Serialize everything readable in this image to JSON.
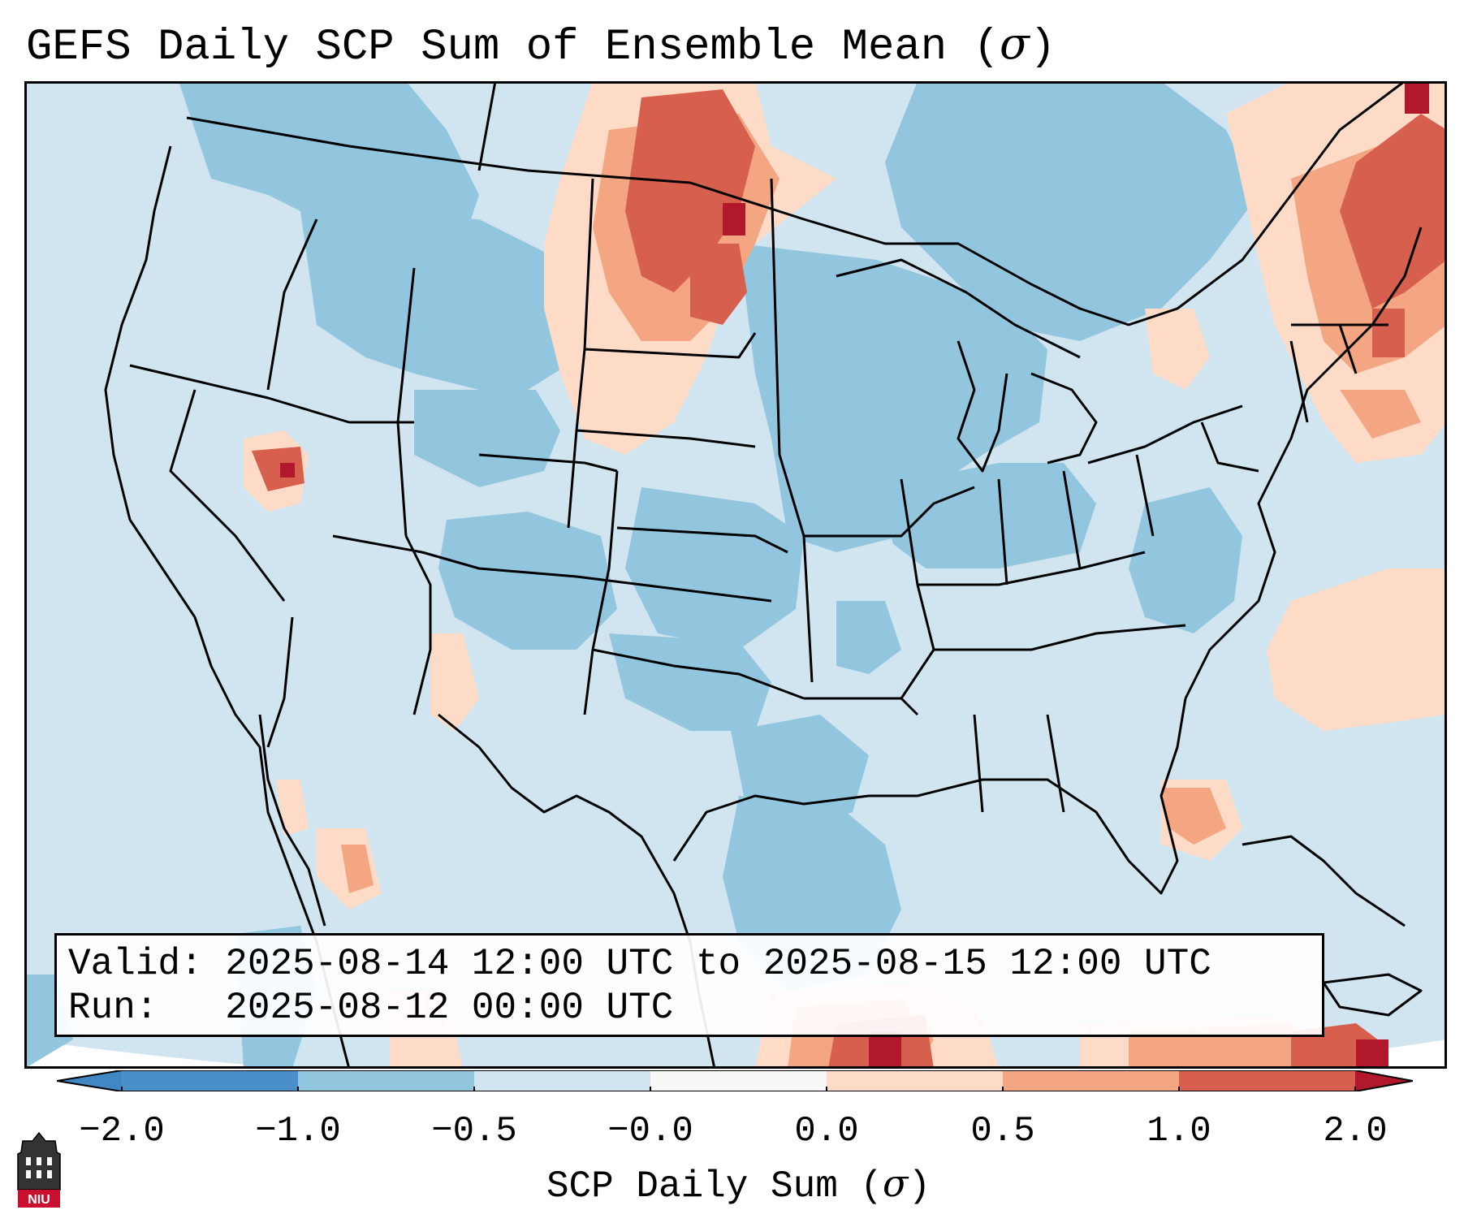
{
  "title": {
    "text": "GEFS Daily SCP Sum of Ensemble Mean (",
    "sigma": "σ",
    "close": ")"
  },
  "info": {
    "valid_label": "Valid:",
    "valid_value": "2025-08-14 12:00 UTC to 2025-08-15 12:00 UTC",
    "run_label": "Run:",
    "run_value": "2025-08-12 00:00 UTC"
  },
  "colorbar": {
    "ticks": [
      "−2.0",
      "−1.0",
      "−0.5",
      "−0.0",
      "0.0",
      "0.5",
      "1.0",
      "2.0"
    ],
    "label_text": "SCP Daily Sum (",
    "label_sigma": "σ",
    "label_close": ")",
    "colors": {
      "extend_low": "#3f88c4",
      "b1": "#4a90c8",
      "b2": "#92c5de",
      "b3": "#d1e5f0",
      "b4": "#f7f7f7",
      "b5": "#fddbc7",
      "b6": "#f4a582",
      "b7": "#d6604d",
      "extend_high": "#b2182b"
    }
  },
  "map": {
    "background_color": "#d1e5f0",
    "ocean_color": "#d1e5f0",
    "extent": "CONUS, southern Canada, northern Mexico, Caribbean"
  },
  "logo": {
    "text": "NIU"
  }
}
